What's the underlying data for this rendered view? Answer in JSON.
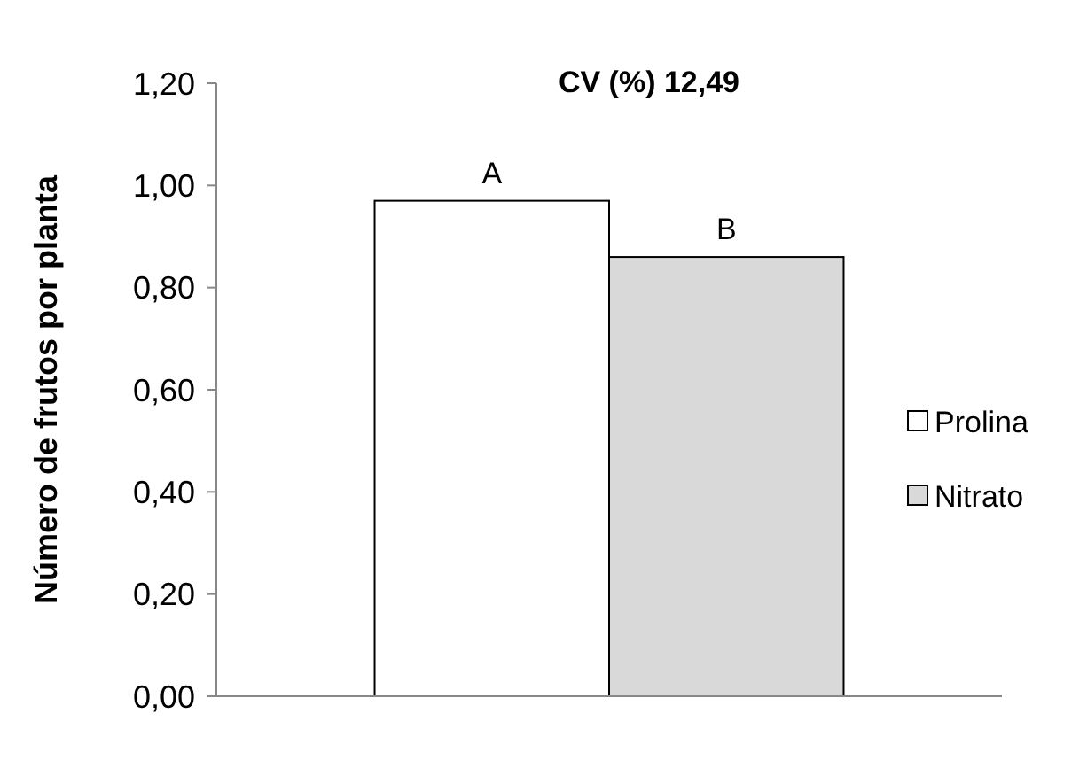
{
  "chart_data": {
    "type": "bar",
    "ylabel": "Número de frutos por planta",
    "categories": [
      null
    ],
    "series": [
      {
        "name": "Prolina",
        "color": "#ffffff",
        "values": [
          0.97
        ],
        "value_labels": [
          "A"
        ]
      },
      {
        "name": "Nitrato",
        "color": "#d9d9d9",
        "values": [
          0.86
        ],
        "value_labels": [
          "B"
        ]
      }
    ],
    "ylim": [
      0,
      1.2
    ],
    "yticks": [
      {
        "value": 0,
        "label": "0,00"
      },
      {
        "value": 0.2,
        "label": "0,20"
      },
      {
        "value": 0.4,
        "label": "0,40"
      },
      {
        "value": 0.6,
        "label": "0,60"
      },
      {
        "value": 0.8,
        "label": "0,80"
      },
      {
        "value": 1,
        "label": "1,00"
      },
      {
        "value": 1.2,
        "label": "1,20"
      }
    ],
    "annotations": [
      "CV (%) 12,49"
    ],
    "grid": false,
    "legend": "right"
  }
}
